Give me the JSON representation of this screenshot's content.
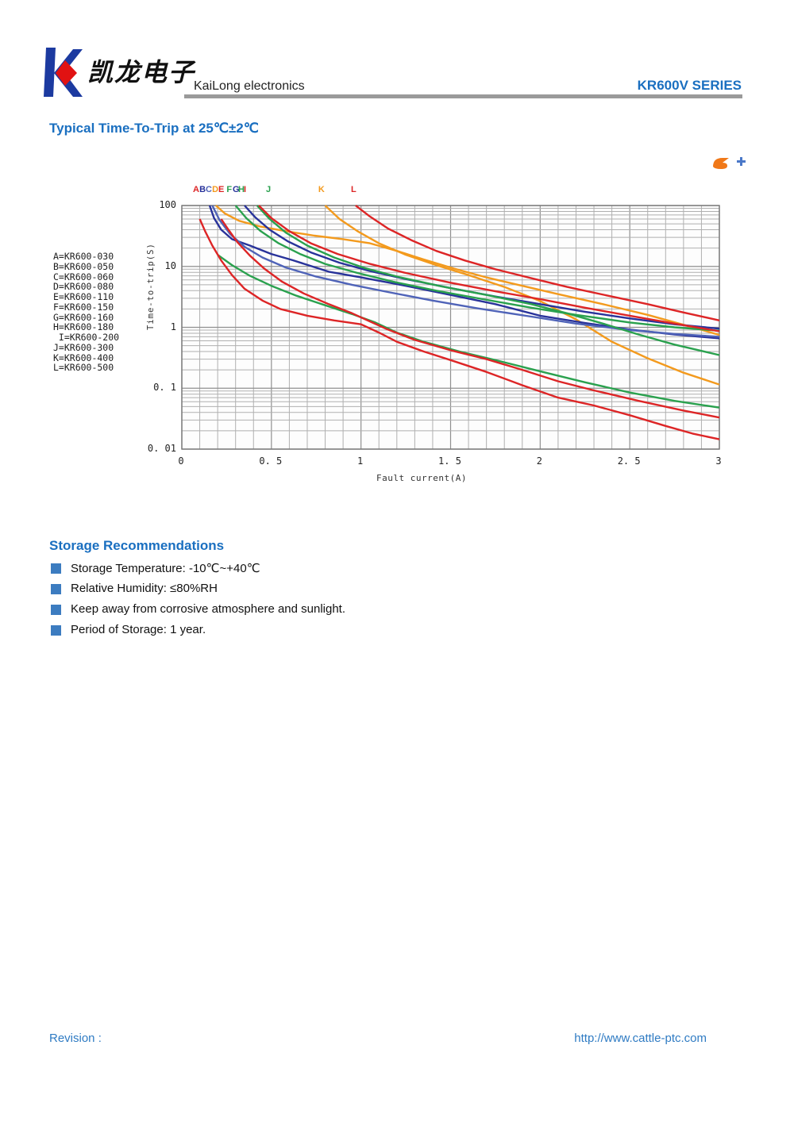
{
  "header": {
    "brand_cn": "凯龙电子",
    "brand_en": "KaiLong electronics",
    "series": "KR600V SERIES"
  },
  "title": "Typical Time-To-Trip at 25℃±2℃",
  "chart_data": {
    "type": "line",
    "title": "Typical Time-To-Trip at 25℃±2℃",
    "xlabel": "Fault current(A)",
    "ylabel": "Time-to-trip(S)",
    "xlim": [
      0,
      3
    ],
    "ylim": [
      0.01,
      100
    ],
    "yscale": "log",
    "grid": true,
    "x_minor_step": 0.1,
    "x_ticks": [
      {
        "v": 0,
        "label": "0"
      },
      {
        "v": 0.5,
        "label": "0. 5"
      },
      {
        "v": 1,
        "label": "1"
      },
      {
        "v": 1.5,
        "label": "1. 5"
      },
      {
        "v": 2,
        "label": "2"
      },
      {
        "v": 2.5,
        "label": "2. 5"
      },
      {
        "v": 3,
        "label": "3"
      }
    ],
    "y_ticks": [
      {
        "v": 100,
        "label": "100"
      },
      {
        "v": 10,
        "label": "10"
      },
      {
        "v": 1,
        "label": "1"
      },
      {
        "v": 0.1,
        "label": "0. 1"
      },
      {
        "v": 0.01,
        "label": "0. 01"
      }
    ],
    "colors": {
      "red": "#dd2526",
      "navy": "#28329a",
      "blue": "#4f63b8",
      "green": "#2aa14e",
      "orange": "#f39a1d"
    },
    "curve_letters": [
      {
        "t": "A",
        "x": 0.084,
        "color": "#dd2526"
      },
      {
        "t": "B",
        "x": 0.12,
        "color": "#28329a"
      },
      {
        "t": "C",
        "x": 0.155,
        "color": "#4f63b8"
      },
      {
        "t": "D",
        "x": 0.191,
        "color": "#f39a1d"
      },
      {
        "t": "E",
        "x": 0.226,
        "color": "#dd2526"
      },
      {
        "t": "F",
        "x": 0.272,
        "color": "#2aa14e"
      },
      {
        "t": "G",
        "x": 0.306,
        "color": "#28329a"
      },
      {
        "t": "H",
        "x": 0.337,
        "color": "#2aa14e"
      },
      {
        "t": "I",
        "x": 0.368,
        "color": "#dd2526"
      },
      {
        "t": "J",
        "x": 0.492,
        "color": "#2aa14e"
      },
      {
        "t": "K",
        "x": 0.784,
        "color": "#f39a1d"
      },
      {
        "t": "L",
        "x": 0.966,
        "color": "#dd2526"
      }
    ],
    "legend": [
      "A=KR600-030",
      "B=KR600-050",
      "C=KR600-060",
      "D=KR600-080",
      "E=KR600-110",
      "F=KR600-150",
      "G=KR600-160",
      "H=KR600-180",
      " I=KR600-200",
      "J=KR600-300",
      "K=KR600-400",
      "L=KR600-500"
    ],
    "series": [
      {
        "name": "D",
        "color": "#f39a1d",
        "points": [
          [
            0.19,
            100
          ],
          [
            0.24,
            74
          ],
          [
            0.32,
            56
          ],
          [
            0.44,
            45
          ],
          [
            0.58,
            38
          ],
          [
            0.74,
            32
          ],
          [
            0.9,
            28
          ],
          [
            1.05,
            24
          ],
          [
            1.2,
            18
          ],
          [
            1.35,
            13
          ],
          [
            1.52,
            9.2
          ],
          [
            1.7,
            6.6
          ],
          [
            1.9,
            4.8
          ],
          [
            2.1,
            3.5
          ],
          [
            2.35,
            2.4
          ],
          [
            2.6,
            1.6
          ],
          [
            2.8,
            1.1
          ],
          [
            3.0,
            0.75
          ]
        ]
      },
      {
        "name": "K",
        "color": "#f39a1d",
        "points": [
          [
            0.8,
            100
          ],
          [
            0.88,
            60
          ],
          [
            0.98,
            38
          ],
          [
            1.1,
            24
          ],
          [
            1.25,
            15.5
          ],
          [
            1.42,
            10.5
          ],
          [
            1.6,
            7.2
          ],
          [
            1.8,
            4.6
          ],
          [
            2.0,
            2.7
          ],
          [
            2.2,
            1.35
          ],
          [
            2.4,
            0.58
          ],
          [
            2.6,
            0.31
          ],
          [
            2.8,
            0.18
          ],
          [
            3.0,
            0.115
          ]
        ]
      },
      {
        "name": "B",
        "color": "#28329a",
        "points": [
          [
            0.155,
            100
          ],
          [
            0.18,
            62
          ],
          [
            0.22,
            40
          ],
          [
            0.28,
            28
          ],
          [
            0.38,
            22
          ],
          [
            0.5,
            16
          ],
          [
            0.62,
            12.6
          ],
          [
            0.82,
            8.2
          ],
          [
            1.0,
            6.6
          ],
          [
            1.25,
            4.8
          ],
          [
            1.5,
            3.4
          ],
          [
            1.75,
            2.4
          ],
          [
            2.0,
            1.55
          ],
          [
            2.25,
            1.18
          ],
          [
            2.5,
            0.92
          ],
          [
            2.75,
            0.76
          ],
          [
            3.0,
            0.66
          ]
        ]
      },
      {
        "name": "C",
        "color": "#4f63b8",
        "points": [
          [
            0.17,
            100
          ],
          [
            0.21,
            58
          ],
          [
            0.27,
            34
          ],
          [
            0.35,
            21
          ],
          [
            0.45,
            14
          ],
          [
            0.58,
            9.6
          ],
          [
            0.75,
            6.8
          ],
          [
            0.95,
            5.0
          ],
          [
            1.15,
            3.8
          ],
          [
            1.4,
            2.75
          ],
          [
            1.65,
            2.05
          ],
          [
            1.95,
            1.5
          ],
          [
            2.2,
            1.15
          ],
          [
            2.5,
            0.9
          ],
          [
            2.75,
            0.78
          ],
          [
            3.0,
            0.7
          ]
        ]
      },
      {
        "name": "G",
        "color": "#28329a",
        "points": [
          [
            0.35,
            100
          ],
          [
            0.41,
            64
          ],
          [
            0.49,
            40
          ],
          [
            0.59,
            26
          ],
          [
            0.72,
            17
          ],
          [
            0.88,
            11.5
          ],
          [
            1.05,
            8.4
          ],
          [
            1.25,
            6.2
          ],
          [
            1.5,
            4.4
          ],
          [
            1.75,
            3.2
          ],
          [
            2.0,
            2.4
          ],
          [
            2.25,
            1.8
          ],
          [
            2.5,
            1.4
          ],
          [
            2.75,
            1.12
          ],
          [
            3.0,
            0.95
          ]
        ]
      },
      {
        "name": "F",
        "color": "#2aa14e",
        "points": [
          [
            0.3,
            100
          ],
          [
            0.36,
            62
          ],
          [
            0.44,
            38
          ],
          [
            0.54,
            24
          ],
          [
            0.66,
            16
          ],
          [
            0.8,
            11
          ],
          [
            0.98,
            7.8
          ],
          [
            1.18,
            5.6
          ],
          [
            1.42,
            4.0
          ],
          [
            1.68,
            2.9
          ],
          [
            1.95,
            2.1
          ],
          [
            2.2,
            1.6
          ],
          [
            2.5,
            1.2
          ],
          [
            2.75,
            1.0
          ],
          [
            3.0,
            0.88
          ]
        ]
      },
      {
        "name": "H",
        "color": "#2aa14e",
        "points": [
          [
            0.42,
            100
          ],
          [
            0.49,
            60
          ],
          [
            0.58,
            36
          ],
          [
            0.7,
            22
          ],
          [
            0.85,
            14
          ],
          [
            1.02,
            9.4
          ],
          [
            1.22,
            6.6
          ],
          [
            1.45,
            4.7
          ],
          [
            1.7,
            3.4
          ],
          [
            1.95,
            2.4
          ],
          [
            2.15,
            1.7
          ],
          [
            2.35,
            1.15
          ],
          [
            2.55,
            0.76
          ],
          [
            2.75,
            0.52
          ],
          [
            2.9,
            0.41
          ],
          [
            3.0,
            0.35
          ]
        ]
      },
      {
        "name": "I",
        "color": "#dd2526",
        "points": [
          [
            0.43,
            100
          ],
          [
            0.5,
            62
          ],
          [
            0.6,
            38
          ],
          [
            0.72,
            24
          ],
          [
            0.87,
            16
          ],
          [
            1.05,
            11
          ],
          [
            1.25,
            7.8
          ],
          [
            1.5,
            5.4
          ],
          [
            1.75,
            3.9
          ],
          [
            2.0,
            2.9
          ],
          [
            2.25,
            2.1
          ],
          [
            2.5,
            1.55
          ],
          [
            2.75,
            1.15
          ],
          [
            3.0,
            0.86
          ]
        ]
      },
      {
        "name": "L",
        "color": "#dd2526",
        "points": [
          [
            0.97,
            100
          ],
          [
            1.05,
            66
          ],
          [
            1.15,
            42
          ],
          [
            1.28,
            27
          ],
          [
            1.42,
            18
          ],
          [
            1.58,
            12.5
          ],
          [
            1.75,
            9.0
          ],
          [
            1.95,
            6.4
          ],
          [
            2.15,
            4.6
          ],
          [
            2.4,
            3.2
          ],
          [
            2.6,
            2.4
          ],
          [
            2.8,
            1.75
          ],
          [
            3.0,
            1.3
          ]
        ]
      },
      {
        "name": "J",
        "color": "#2aa14e",
        "points": [
          [
            0.2,
            15.5
          ],
          [
            0.28,
            10.5
          ],
          [
            0.38,
            7.0
          ],
          [
            0.5,
            4.8
          ],
          [
            0.64,
            3.3
          ],
          [
            0.8,
            2.3
          ],
          [
            0.95,
            1.65
          ],
          [
            1.08,
            1.2
          ],
          [
            1.2,
            0.82
          ],
          [
            1.35,
            0.58
          ],
          [
            1.55,
            0.4
          ],
          [
            1.75,
            0.29
          ],
          [
            2.0,
            0.19
          ],
          [
            2.25,
            0.125
          ],
          [
            2.5,
            0.085
          ],
          [
            2.75,
            0.062
          ],
          [
            3.0,
            0.048
          ]
        ]
      },
      {
        "name": "E",
        "color": "#dd2526",
        "points": [
          [
            0.22,
            60
          ],
          [
            0.26,
            40
          ],
          [
            0.31,
            25
          ],
          [
            0.38,
            15
          ],
          [
            0.46,
            9.2
          ],
          [
            0.56,
            5.6
          ],
          [
            0.68,
            3.6
          ],
          [
            0.82,
            2.4
          ],
          [
            0.95,
            1.7
          ],
          [
            1.05,
            1.25
          ],
          [
            1.15,
            0.92
          ],
          [
            1.3,
            0.62
          ],
          [
            1.5,
            0.42
          ],
          [
            1.7,
            0.3
          ],
          [
            1.9,
            0.2
          ],
          [
            2.1,
            0.13
          ],
          [
            2.3,
            0.092
          ],
          [
            2.55,
            0.062
          ],
          [
            2.8,
            0.043
          ],
          [
            3.0,
            0.033
          ]
        ]
      },
      {
        "name": "A",
        "color": "#dd2526",
        "points": [
          [
            0.1,
            60
          ],
          [
            0.13,
            38
          ],
          [
            0.17,
            22
          ],
          [
            0.22,
            12.5
          ],
          [
            0.28,
            7.2
          ],
          [
            0.35,
            4.3
          ],
          [
            0.45,
            2.75
          ],
          [
            0.55,
            2.0
          ],
          [
            0.7,
            1.55
          ],
          [
            0.85,
            1.3
          ],
          [
            1.0,
            1.12
          ],
          [
            1.1,
            0.82
          ],
          [
            1.2,
            0.58
          ],
          [
            1.35,
            0.4
          ],
          [
            1.5,
            0.29
          ],
          [
            1.7,
            0.185
          ],
          [
            1.9,
            0.112
          ],
          [
            2.1,
            0.07
          ],
          [
            2.3,
            0.052
          ],
          [
            2.5,
            0.036
          ],
          [
            2.7,
            0.024
          ],
          [
            2.85,
            0.018
          ],
          [
            3.0,
            0.0145
          ]
        ]
      }
    ]
  },
  "storage": {
    "title": "Storage Recommendations",
    "items": [
      "Storage Temperature: -10℃~+40℃",
      "Relative Humidity: ≤80%RH",
      "Keep away from corrosive atmosphere and sunlight.",
      "Period of Storage: 1 year."
    ]
  },
  "footer": {
    "revision_label": "Revision :",
    "url": "http://www.cattle-ptc.com"
  }
}
